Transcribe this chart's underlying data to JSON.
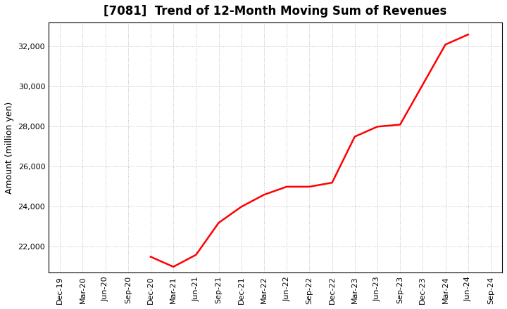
{
  "title": "[7081]  Trend of 12-Month Moving Sum of Revenues",
  "ylabel": "Amount (million yen)",
  "line_color": "#FF0000",
  "line_width": 1.8,
  "background_color": "#FFFFFF",
  "grid_color": "#BBBBBB",
  "x_labels": [
    "Dec-19",
    "Mar-20",
    "Jun-20",
    "Sep-20",
    "Dec-20",
    "Mar-21",
    "Jun-21",
    "Sep-21",
    "Dec-21",
    "Mar-22",
    "Jun-22",
    "Sep-22",
    "Dec-22",
    "Mar-23",
    "Jun-23",
    "Sep-23",
    "Dec-23",
    "Mar-24",
    "Jun-24",
    "Sep-24"
  ],
  "data_x_indices": [
    4,
    5,
    6,
    7,
    8,
    9,
    10,
    11,
    12,
    13,
    14,
    15,
    16,
    17,
    18
  ],
  "data_y": [
    21500,
    21000,
    21600,
    23200,
    24000,
    24600,
    25000,
    25000,
    25200,
    27500,
    28000,
    28100,
    30100,
    32100,
    32600
  ],
  "ylim": [
    20700,
    33200
  ],
  "yticks": [
    22000,
    24000,
    26000,
    28000,
    30000,
    32000
  ],
  "title_fontsize": 12,
  "axis_fontsize": 8,
  "ylabel_fontsize": 9
}
